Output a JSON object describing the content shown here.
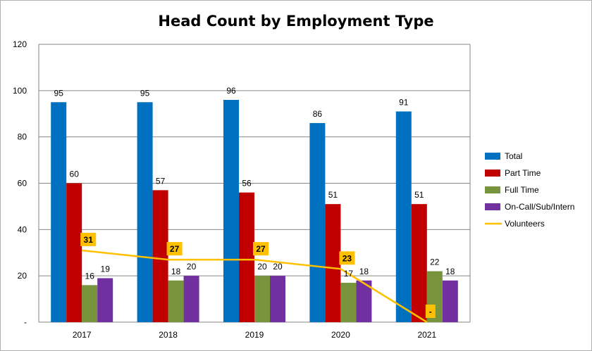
{
  "chart_data": {
    "type": "bar",
    "title": "Head Count by Employment Type",
    "xlabel": "",
    "ylabel": "",
    "categories": [
      "2017",
      "2018",
      "2019",
      "2020",
      "2021"
    ],
    "ylim": [
      0,
      120
    ],
    "yticks": [
      "-",
      "20",
      "40",
      "60",
      "80",
      "100",
      "120"
    ],
    "grid": true,
    "legend_position": "right",
    "series": [
      {
        "name": "Total",
        "type": "bar",
        "color": "#0070C0",
        "values": [
          95,
          95,
          96,
          86,
          91
        ],
        "labels": [
          "95",
          "95",
          "96",
          "86",
          "91"
        ]
      },
      {
        "name": "Part Time",
        "type": "bar",
        "color": "#C00000",
        "values": [
          60,
          57,
          56,
          51,
          51
        ],
        "labels": [
          "60",
          "57",
          "56",
          "51",
          "51"
        ]
      },
      {
        "name": "Full Time",
        "type": "bar",
        "color": "#77933C",
        "values": [
          16,
          18,
          20,
          17,
          22
        ],
        "labels": [
          "16",
          "18",
          "20",
          "17",
          "22"
        ]
      },
      {
        "name": "On-Call/Sub/Intern",
        "type": "bar",
        "color": "#7030A0",
        "values": [
          19,
          20,
          20,
          18,
          18
        ],
        "labels": [
          "19",
          "20",
          "20",
          "18",
          "18"
        ]
      },
      {
        "name": "Volunteers",
        "type": "line",
        "color": "#FFC000",
        "values": [
          31,
          27,
          27,
          23,
          0
        ],
        "labels": [
          "31",
          "27",
          "27",
          "23",
          "-"
        ]
      }
    ]
  }
}
